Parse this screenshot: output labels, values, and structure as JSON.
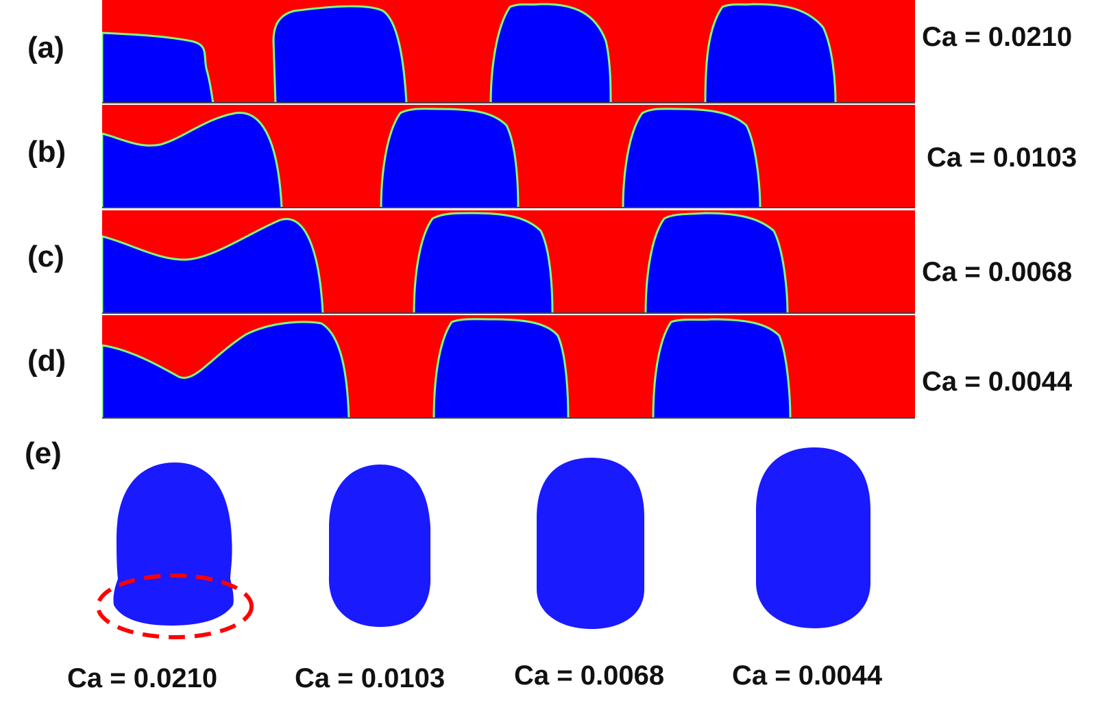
{
  "colors": {
    "liquid": "#ff0000",
    "gas": "#0000ff",
    "interface_edge": "#7fff80",
    "highlight": "#ff0000",
    "text": "#111111"
  },
  "panels": [
    {
      "label": "(a)",
      "ca": "Ca = 0.0210"
    },
    {
      "label": "(b)",
      "ca": "Ca = 0.0103"
    },
    {
      "label": "(c)",
      "ca": "Ca = 0.0068"
    },
    {
      "label": "(d)",
      "ca": "Ca = 0.0044"
    }
  ],
  "panel_e": {
    "label": "(e)",
    "bubbles": [
      {
        "ca": "Ca = 0.0210",
        "highlighted": true
      },
      {
        "ca": "Ca = 0.0103",
        "highlighted": false
      },
      {
        "ca": "Ca = 0.0068",
        "highlighted": false
      },
      {
        "ca": "Ca = 0.0044",
        "highlighted": false
      }
    ]
  }
}
